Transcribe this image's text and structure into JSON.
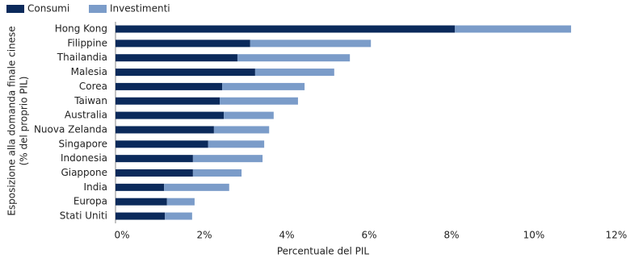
{
  "chart_data": {
    "type": "stacked-barh",
    "x_label": "Percentuale del PIL",
    "y_label": [
      "Esposizione alla domanda finale cinese",
      "(% del proprio PIL)"
    ],
    "categories": [
      "Hong Kong",
      "Filippine",
      "Thailandia",
      "Malesia",
      "Corea",
      "Taiwan",
      "Australia",
      "Nuova Zelanda",
      "Singapore",
      "Indonesia",
      "Giappone",
      "India",
      "Europa",
      "Stati Uniti"
    ],
    "series": [
      {
        "name": "Consumi",
        "color": "#0b2a5b",
        "values": [
          8.24,
          3.27,
          2.96,
          3.39,
          2.59,
          2.53,
          2.63,
          2.39,
          2.25,
          1.88,
          1.88,
          1.18,
          1.25,
          1.2
        ]
      },
      {
        "name": "Investimenti",
        "color": "#7b9cc9",
        "values": [
          2.82,
          2.93,
          2.73,
          1.92,
          2.0,
          1.9,
          1.21,
          1.34,
          1.36,
          1.69,
          1.18,
          1.58,
          0.67,
          0.66
        ]
      }
    ],
    "xlim": [
      0,
      12
    ],
    "xticks": [
      {
        "value": 0,
        "label": "0%"
      },
      {
        "value": 2,
        "label": "2%"
      },
      {
        "value": 4,
        "label": "4%"
      },
      {
        "value": 6,
        "label": "6%"
      },
      {
        "value": 8,
        "label": "8%"
      },
      {
        "value": 10,
        "label": "10%"
      },
      {
        "value": 12,
        "label": "12%"
      }
    ]
  }
}
